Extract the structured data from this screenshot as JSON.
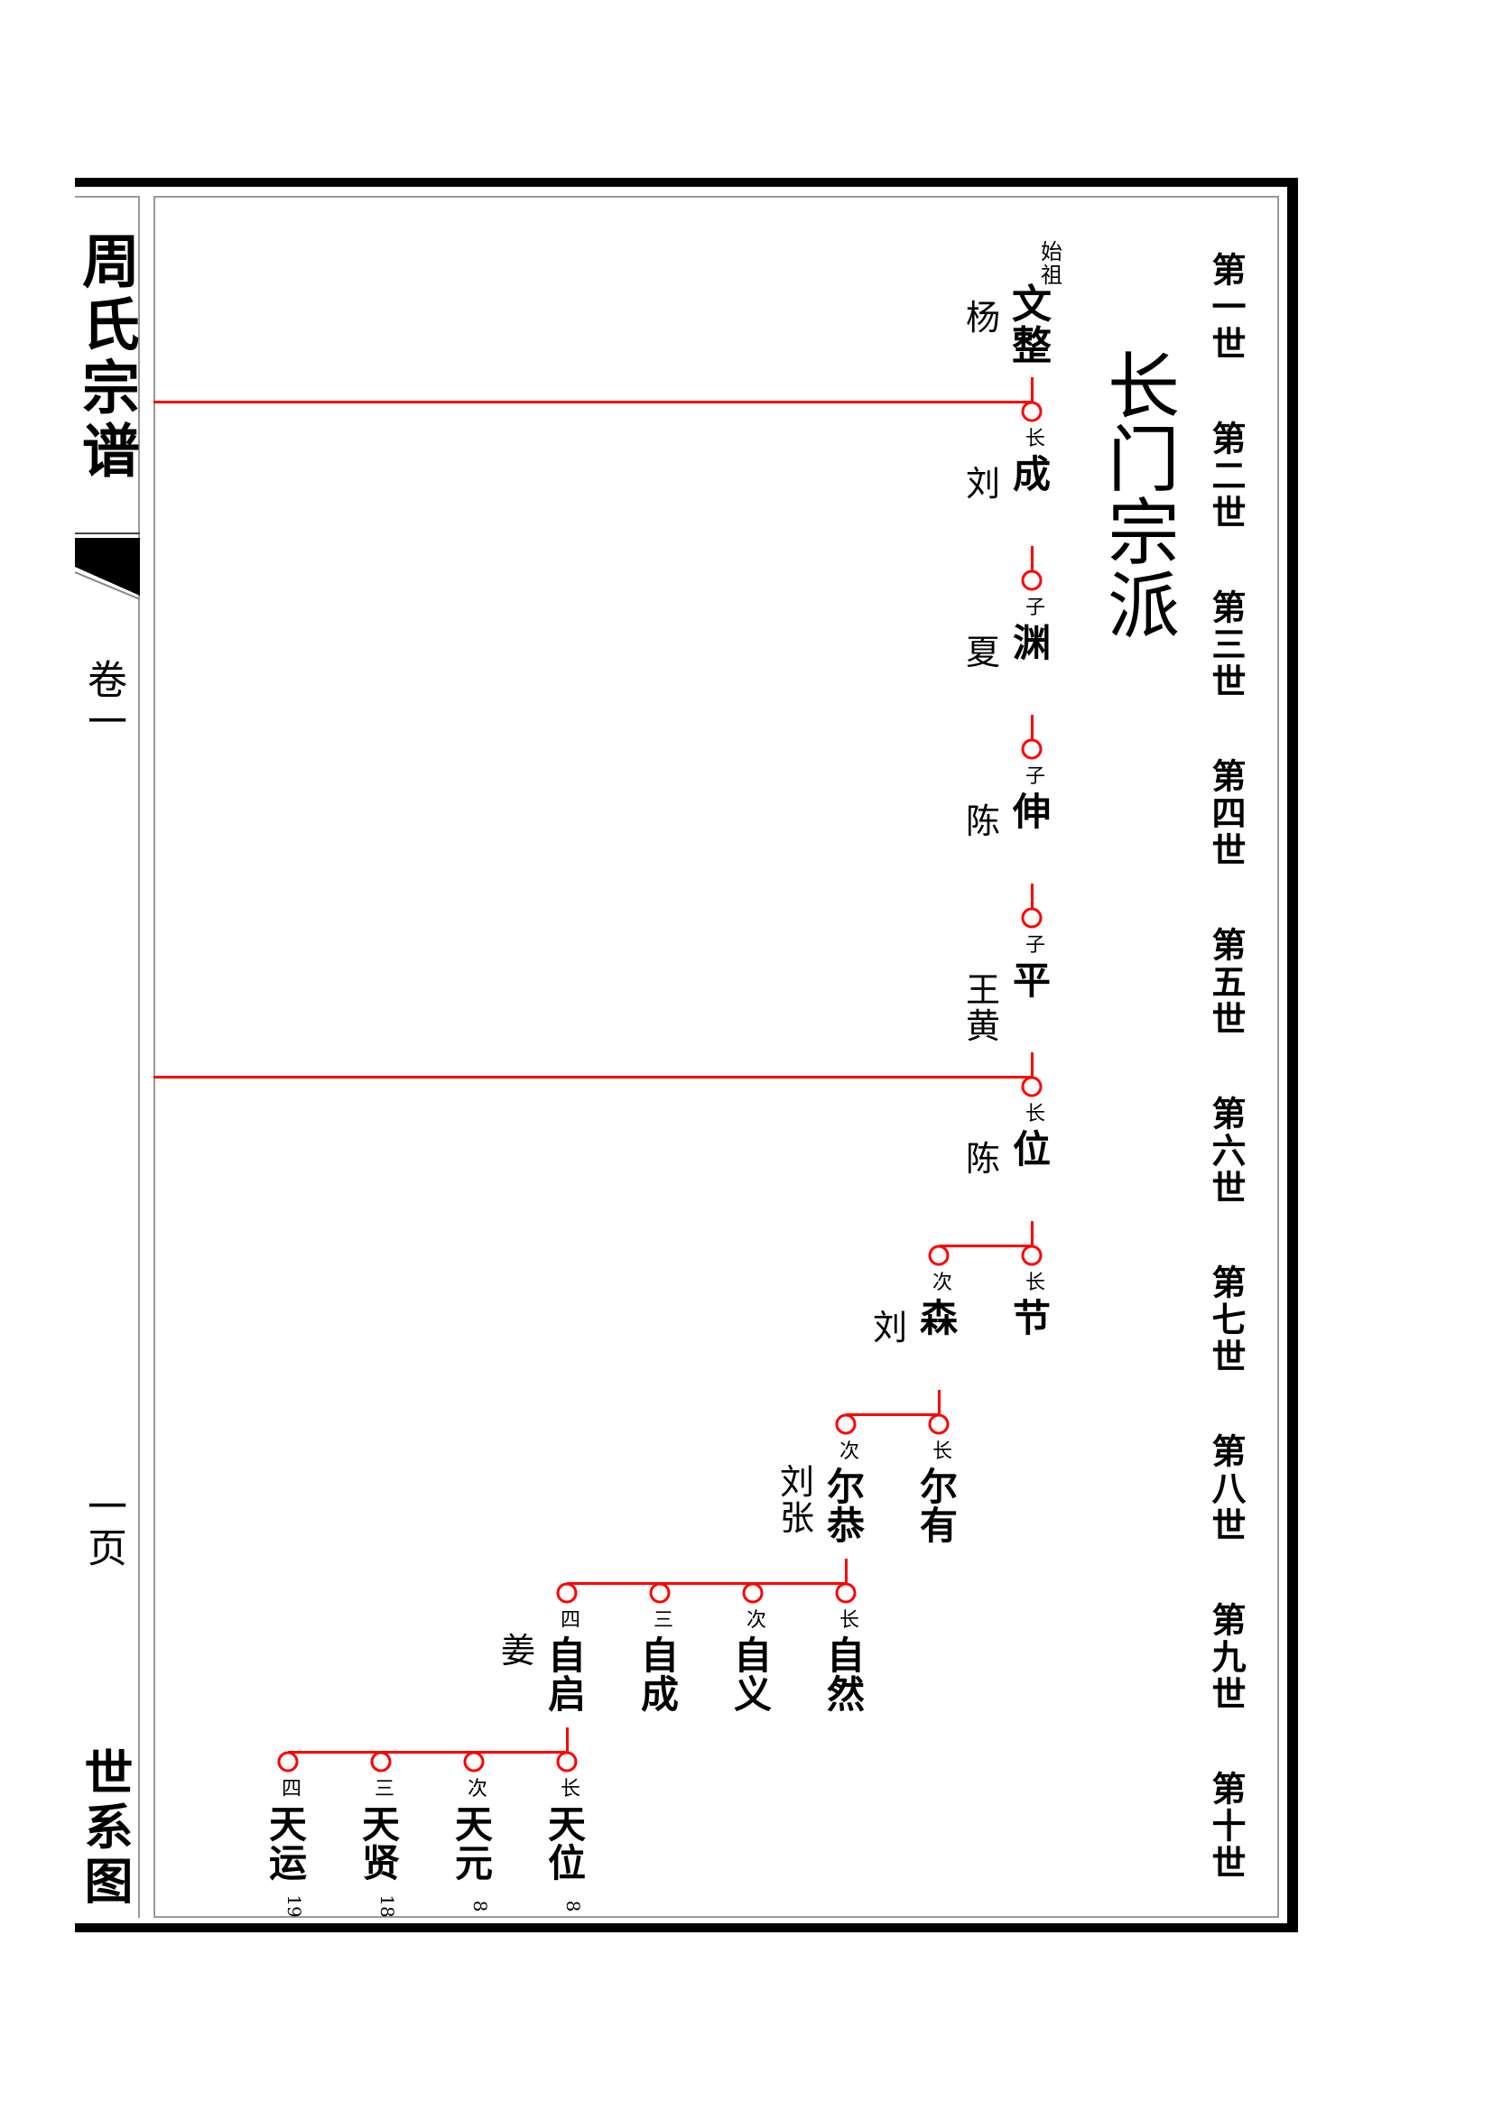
{
  "book": {
    "title": "周氏宗谱",
    "volume": "卷一",
    "page": "一页",
    "section": "世系图"
  },
  "branch_title": "长门宗派",
  "generations": [
    "第一世",
    "第二世",
    "第三世",
    "第四世",
    "第五世",
    "第六世",
    "第七世",
    "第八世",
    "第九世",
    "第十世"
  ],
  "colors": {
    "line": "#ff0000",
    "text": "#000000",
    "border": "#999999"
  },
  "people": [
    {
      "gen": 1,
      "col": 0,
      "rank": "始祖",
      "name": "文整",
      "spouse": "杨"
    },
    {
      "gen": 2,
      "col": 0,
      "rank": "长",
      "name": "成",
      "spouse": "刘",
      "parent_col": 0,
      "long_line": true
    },
    {
      "gen": 3,
      "col": 0,
      "rank": "子",
      "name": "渊",
      "spouse": "夏",
      "parent_col": 0
    },
    {
      "gen": 4,
      "col": 0,
      "rank": "子",
      "name": "伸",
      "spouse": "陈",
      "parent_col": 0
    },
    {
      "gen": 5,
      "col": 0,
      "rank": "子",
      "name": "平",
      "spouse": "王黄",
      "parent_col": 0
    },
    {
      "gen": 6,
      "col": 0,
      "rank": "长",
      "name": "位",
      "spouse": "陈",
      "parent_col": 0,
      "long_line": true
    },
    {
      "gen": 7,
      "col": 0,
      "rank": "长",
      "name": "节",
      "parent_col": 0
    },
    {
      "gen": 7,
      "col": 1,
      "rank": "次",
      "name": "森",
      "spouse": "刘",
      "parent_col": 0
    },
    {
      "gen": 8,
      "col": 1,
      "rank": "长",
      "name": "尔有",
      "parent_col": 1
    },
    {
      "gen": 8,
      "col": 2,
      "rank": "次",
      "name": "尔恭",
      "spouse": "刘张",
      "parent_col": 1
    },
    {
      "gen": 9,
      "col": 2,
      "rank": "长",
      "name": "自然",
      "parent_col": 2
    },
    {
      "gen": 9,
      "col": 3,
      "rank": "次",
      "name": "自义",
      "parent_col": 2
    },
    {
      "gen": 9,
      "col": 4,
      "rank": "三",
      "name": "自成",
      "parent_col": 2
    },
    {
      "gen": 9,
      "col": 5,
      "rank": "四",
      "name": "自启",
      "spouse": "姜",
      "parent_col": 2
    },
    {
      "gen": 10,
      "col": 5,
      "rank": "长",
      "name": "天位",
      "note": "8",
      "parent_col": 5
    },
    {
      "gen": 10,
      "col": 6,
      "rank": "次",
      "name": "天元",
      "note": "8",
      "parent_col": 5
    },
    {
      "gen": 10,
      "col": 7,
      "rank": "三",
      "name": "天贤",
      "note": "18",
      "parent_col": 5
    },
    {
      "gen": 10,
      "col": 8,
      "rank": "四",
      "name": "天运",
      "note": "19",
      "parent_col": 5
    }
  ]
}
